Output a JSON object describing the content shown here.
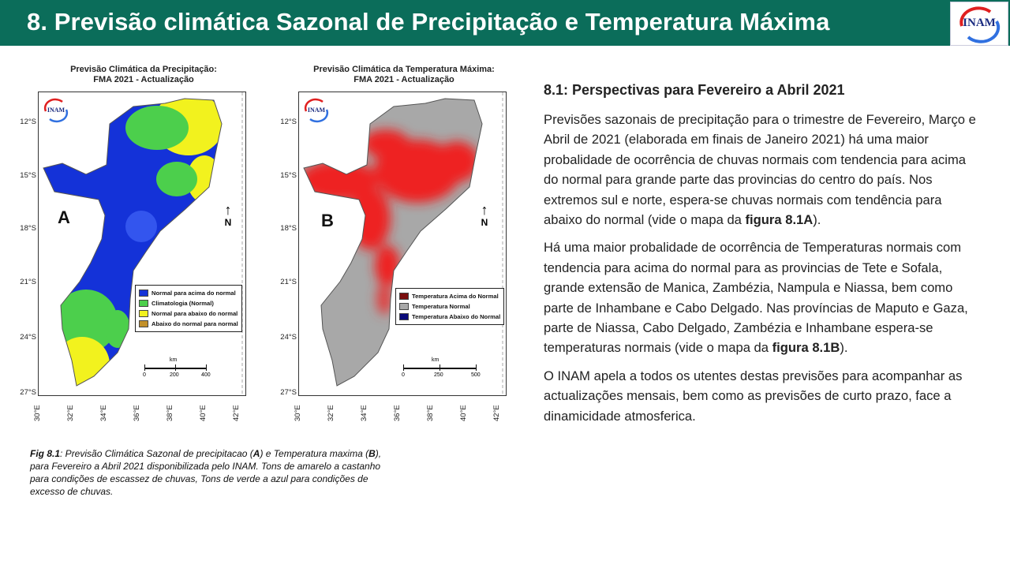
{
  "header": {
    "title": "8. Previsão climática Sazonal de Precipitação e Temperatura Máxima",
    "logo_text": "INAM"
  },
  "map_a": {
    "title_line1": "Previsão Climática da Precipitação:",
    "title_line2": "FMA 2021 - Actualização",
    "letter": "A",
    "logo_text": "INAM",
    "north": "N",
    "legend": [
      {
        "label": "Normal para acima do normal",
        "color": "#1432d8"
      },
      {
        "label": "Climatologia (Normal)",
        "color": "#4ccf4c"
      },
      {
        "label": "Normal para abaixo do normal",
        "color": "#f2f21e"
      },
      {
        "label": "Abaixo do normal para normal",
        "color": "#c2902a"
      }
    ],
    "scale_unit": "km",
    "scale_ticks": [
      "0",
      "200",
      "400"
    ]
  },
  "map_b": {
    "title_line1": "Previsão Climática da Temperatura Máxima:",
    "title_line2": "FMA 2021 - Actualização",
    "letter": "B",
    "logo_text": "INAM",
    "north": "N",
    "legend": [
      {
        "label": "Temperatura Acima do Normal",
        "color": "#7a0d0d"
      },
      {
        "label": "Temperatura Normal",
        "color": "#a8a8a8"
      },
      {
        "label": "Temperatura Abaixo do Normal",
        "color": "#0a0a7a"
      }
    ],
    "scale_unit": "km",
    "scale_ticks": [
      "0",
      "250",
      "500"
    ]
  },
  "axes": {
    "lat": [
      "12°S",
      "15°S",
      "18°S",
      "21°S",
      "24°S",
      "27°S"
    ],
    "lon": [
      "30°E",
      "32°E",
      "34°E",
      "36°E",
      "38°E",
      "40°E",
      "42°E"
    ]
  },
  "caption": {
    "prefix": "Fig 8.1",
    "t1": ": Previsão Climática Sazonal de precipitacao (",
    "a": "A",
    "t2": ") e Temperatura maxima (",
    "b": "B",
    "t3": "), para Fevereiro a Abril 2021 disponibilizada pelo INAM. Tons de amarelo a castanho para condições de escassez de chuvas, Tons de verde a azul para condições de excesso de chuvas."
  },
  "right": {
    "heading": "8.1: Perspectivas para  Fevereiro a Abril 2021",
    "p1_text": "Previsões sazonais de precipitação para o trimestre de Fevereiro, Março e Abril de 2021 (elaborada em finais de Janeiro 2021) há uma maior probalidade de ocorrência de chuvas normais com tendencia para acima do normal para grande parte das provincias do centro do país. Nos extremos sul e norte, espera-se  chuvas normais com tendência para abaixo do normal (vide o mapa da ",
    "p1_bold": "figura 8.1A",
    "p1_end": ").",
    "p2_text": "Há uma maior probalidade de ocorrência de Temperaturas normais com tendencia para acima do normal para as provincias de Tete e Sofala, grande extensão de Manica, Zambézia, Nampula e Niassa, bem como parte de Inhambane e Cabo Delgado. Nas províncias de Maputo e Gaza, parte de Niassa, Cabo Delgado, Zambézia e Inhambane espera-se temperaturas normais (vide o mapa da ",
    "p2_bold": "figura 8.1B",
    "p2_end": ").",
    "p3_text": "O INAM apela a todos os utentes destas previsões para acompanhar as actualizações mensais, bem como as previsões de curto prazo, face a dinamicidade atmosferica."
  }
}
